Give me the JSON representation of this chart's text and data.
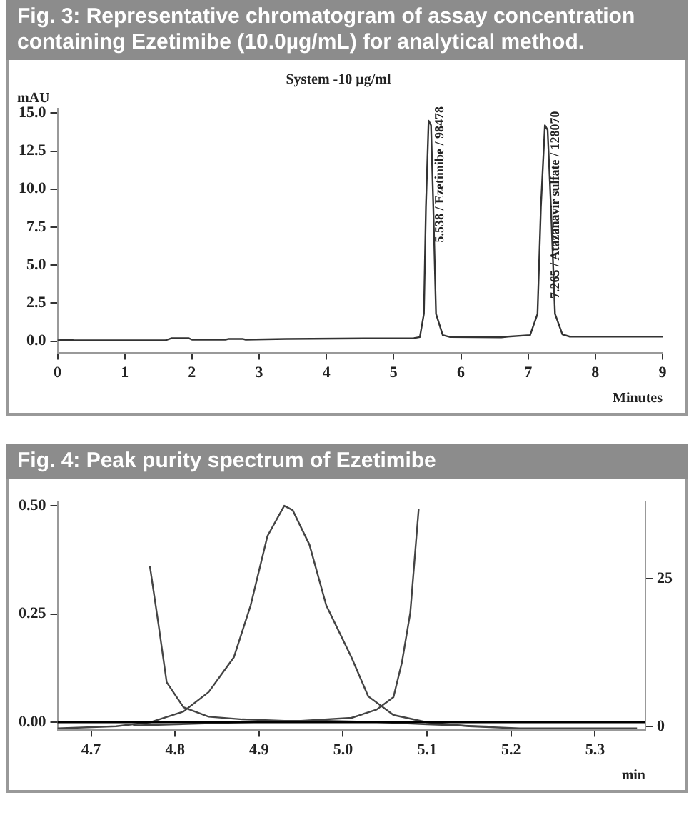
{
  "chart_data": [
    {
      "type": "line",
      "title": "Fig. 3: Representative chromatogram of assay concentration containing Ezetimibe (10.0µg/mL) for analytical method.",
      "subtitle": "System -10 µg/ml",
      "xlabel": "Minutes",
      "ylabel": "mAU",
      "xlim": [
        0,
        9
      ],
      "xticks": [
        0,
        1,
        2,
        3,
        4,
        5,
        6,
        7,
        8,
        9
      ],
      "ylim": [
        -0.75,
        15.3
      ],
      "yticks": [
        {
          "value": 0,
          "label": "0.0"
        },
        {
          "value": 2.5,
          "label": "2.5"
        },
        {
          "value": 5,
          "label": "5.0"
        },
        {
          "value": 7.5,
          "label": "7.5"
        },
        {
          "value": 10,
          "label": "10.0"
        },
        {
          "value": 12.5,
          "label": "12.5"
        },
        {
          "value": 15,
          "label": "15.0"
        }
      ],
      "grid": false,
      "legend": false,
      "marker": "none",
      "line_style": "solid",
      "series": [
        {
          "color": "#333333",
          "x": [
            0,
            0.2,
            0.25,
            1.6,
            1.7,
            1.95,
            2.0,
            2.5,
            2.55,
            2.75,
            2.8,
            3.4,
            5.3,
            5.39,
            5.45,
            5.48,
            5.52,
            5.556,
            5.59,
            5.63,
            5.73,
            5.84,
            6.6,
            6.7,
            7.03,
            7.14,
            7.19,
            7.25,
            7.29,
            7.34,
            7.4,
            7.51,
            7.62,
            9
          ],
          "values": [
            0.05,
            0.1,
            0.05,
            0.05,
            0.2,
            0.2,
            0.1,
            0.1,
            0.15,
            0.15,
            0.1,
            0.15,
            0.2,
            0.27,
            1.8,
            8.8,
            14.5,
            14.2,
            8.8,
            1.8,
            0.4,
            0.27,
            0.25,
            0.3,
            0.4,
            1.8,
            8.8,
            14.2,
            13.9,
            8.8,
            1.8,
            0.45,
            0.3,
            0.3
          ]
        }
      ],
      "annotations": [
        {
          "text": "5.538 / Ezetimibe / 98478",
          "x": 5.538,
          "y": 14.5
        },
        {
          "text": "7.265 / Atazanavir sulfate / 128070",
          "x": 7.265,
          "y": 14.2
        }
      ]
    },
    {
      "type": "line",
      "title": "Fig. 4: Peak purity spectrum of Ezetimibe",
      "xlabel": "min",
      "xlim": [
        4.66,
        5.36
      ],
      "xticks": [
        4.7,
        4.8,
        4.9,
        {
          "value": 5,
          "label": "5.0"
        },
        5.1,
        5.2,
        5.3
      ],
      "ylim": [
        -0.017,
        0.51
      ],
      "yticks": [
        {
          "value": 0,
          "label": "0.00"
        },
        {
          "value": 0.25,
          "label": "0.25"
        },
        {
          "value": 0.5,
          "label": "0.50"
        }
      ],
      "y2lim": [
        -0.5,
        38
      ],
      "y2ticks": [
        0,
        25
      ],
      "grid": false,
      "legend": false,
      "marker": "none",
      "line_style": "solid",
      "ref_lines": [
        {
          "axis": "y",
          "value": 0,
          "color": "#000000"
        }
      ],
      "series": [
        {
          "color": "#444444",
          "x": [
            4.66,
            4.73,
            4.77,
            4.81,
            4.84,
            4.87,
            4.89,
            4.91,
            4.93,
            4.94,
            4.96,
            4.98,
            5.01,
            5.03,
            5.06,
            5.1,
            5.15,
            5.21,
            5.35
          ],
          "values": [
            -0.014,
            -0.009,
            0,
            0.025,
            0.07,
            0.15,
            0.27,
            0.43,
            0.5,
            0.49,
            0.41,
            0.27,
            0.15,
            0.06,
            0.017,
            0,
            -0.009,
            -0.014,
            -0.014
          ]
        },
        {
          "color": "#444444",
          "axis": "y2",
          "x": [
            4.77,
            4.78,
            4.79,
            4.81,
            4.84,
            4.88,
            4.93,
            4.98,
            5.04,
            5.1,
            5.18
          ],
          "values": [
            27.1,
            17.5,
            7.5,
            3.3,
            1.7,
            1.25,
            1.0,
            1.0,
            0.8,
            0.4,
            0
          ]
        },
        {
          "color": "#444444",
          "axis": "y2",
          "x": [
            4.75,
            4.87,
            4.95,
            5.01,
            5.04,
            5.06,
            5.07,
            5.08,
            5.09
          ],
          "values": [
            0.2,
            0.7,
            1.0,
            1.5,
            2.9,
            5,
            10.8,
            19.2,
            36.7
          ]
        }
      ]
    }
  ]
}
